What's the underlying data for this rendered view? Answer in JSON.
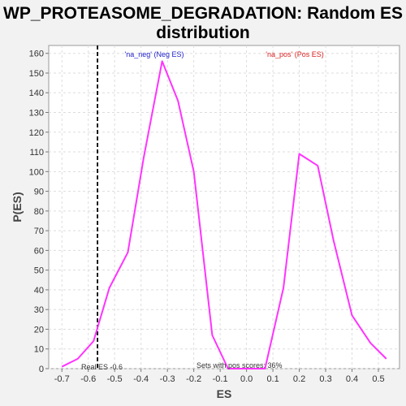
{
  "chart_data": {
    "type": "line",
    "title": "WP_PROTEASOME_DEGRADATION: Random ES distribution",
    "title_lines": [
      "WP_PROTEASOME_DEGRADATION: Random ES",
      "distribution"
    ],
    "xlabel": "ES",
    "ylabel": "P(ES)",
    "xlim": [
      -0.75,
      0.58
    ],
    "ylim": [
      0,
      164
    ],
    "x_ticks": [
      -0.7,
      -0.6,
      -0.5,
      -0.4,
      -0.3,
      -0.2,
      -0.1,
      0.0,
      0.1,
      0.2,
      0.3,
      0.4,
      0.5
    ],
    "x_tick_labels": [
      "-0.7",
      "-0.6",
      "-0.5",
      "-0.4",
      "-0.3",
      "-0.2",
      "-0.1",
      "0.0",
      "0.1",
      "0.2",
      "0.3",
      "0.4",
      "0.5"
    ],
    "y_ticks": [
      0,
      10,
      20,
      30,
      40,
      50,
      60,
      70,
      80,
      90,
      100,
      110,
      120,
      130,
      140,
      150,
      160
    ],
    "y_tick_labels": [
      "0",
      "10",
      "20",
      "30",
      "40",
      "50",
      "60",
      "70",
      "80",
      "90",
      "100",
      "110",
      "120",
      "130",
      "140",
      "150",
      "160"
    ],
    "grid": true,
    "series": [
      {
        "color": "#ff33ff",
        "x": [
          -0.7,
          -0.64,
          -0.58,
          -0.52,
          -0.45,
          -0.39,
          -0.32,
          -0.26,
          -0.2,
          -0.13,
          -0.07,
          0.0,
          0.07,
          0.14,
          0.2,
          0.27,
          0.33,
          0.4,
          0.47,
          0.53
        ],
        "y": [
          1,
          5,
          14,
          41,
          59,
          107,
          156,
          136,
          100,
          17,
          0,
          0,
          0,
          41,
          109,
          103,
          65,
          27,
          13,
          5
        ]
      }
    ],
    "real_es": -0.565,
    "real_es_label": "Real ES -0.6",
    "legend_neg": "'na_neg' (Neg ES)",
    "legend_neg_color": "#2222cc",
    "legend_pos": "'na_pos' (Pos ES)",
    "legend_pos_color": "#dd2222",
    "pos_scores_label": "Sets with pos scores: 36%"
  }
}
